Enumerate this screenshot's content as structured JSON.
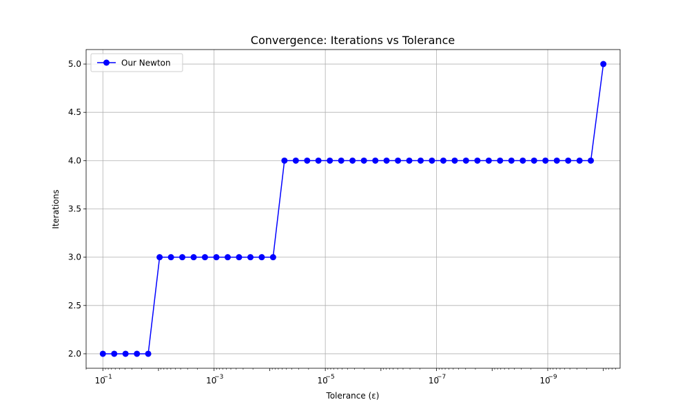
{
  "chart_data": {
    "type": "line",
    "title": "Convergence: Iterations vs Tolerance",
    "xlabel": "Tolerance (ε)",
    "ylabel": "Iterations",
    "x_scale": "log",
    "x_reversed": true,
    "xlim": [
      0.2,
      5e-11
    ],
    "ylim": [
      1.85,
      5.15
    ],
    "grid": true,
    "legend_position": "top-left",
    "x_ticks": [
      {
        "value": 0.1,
        "label": "10",
        "exp": "−1"
      },
      {
        "value": 0.001,
        "label": "10",
        "exp": "−3"
      },
      {
        "value": 1e-05,
        "label": "10",
        "exp": "−5"
      },
      {
        "value": 1e-07,
        "label": "10",
        "exp": "−7"
      },
      {
        "value": 1e-09,
        "label": "10",
        "exp": "−9"
      }
    ],
    "y_ticks": [
      "2.0",
      "2.5",
      "3.0",
      "3.5",
      "4.0",
      "4.5",
      "5.0"
    ],
    "series": [
      {
        "name": "Our Newton",
        "color": "#0000ff",
        "marker": "circle",
        "x": [
          0.1,
          0.0625,
          0.0391,
          0.0244,
          0.0153,
          0.00954,
          0.00596,
          0.00373,
          0.00233,
          0.00146,
          0.00091,
          0.000569,
          0.000356,
          0.000222,
          0.000139,
          8.69e-05,
          5.43e-05,
          3.39e-05,
          2.12e-05,
          1.33e-05,
          8.29e-06,
          5.18e-06,
          3.24e-06,
          2.02e-06,
          1.26e-06,
          7.91e-07,
          4.94e-07,
          3.09e-07,
          1.93e-07,
          1.21e-07,
          7.54e-08,
          4.71e-08,
          2.95e-08,
          1.84e-08,
          1.15e-08,
          7.2e-09,
          4.5e-09,
          2.81e-09,
          1.76e-09,
          1.1e-09,
          6.86e-10,
          4.29e-10,
          2.68e-10,
          1.68e-10,
          1e-10
        ],
        "y": [
          2,
          2,
          2,
          2,
          2,
          3,
          3,
          3,
          3,
          3,
          3,
          3,
          3,
          3,
          3,
          3,
          4,
          4,
          4,
          4,
          4,
          4,
          4,
          4,
          4,
          4,
          4,
          4,
          4,
          4,
          4,
          4,
          4,
          4,
          4,
          4,
          4,
          4,
          4,
          4,
          4,
          4,
          4,
          4,
          5
        ]
      }
    ]
  }
}
